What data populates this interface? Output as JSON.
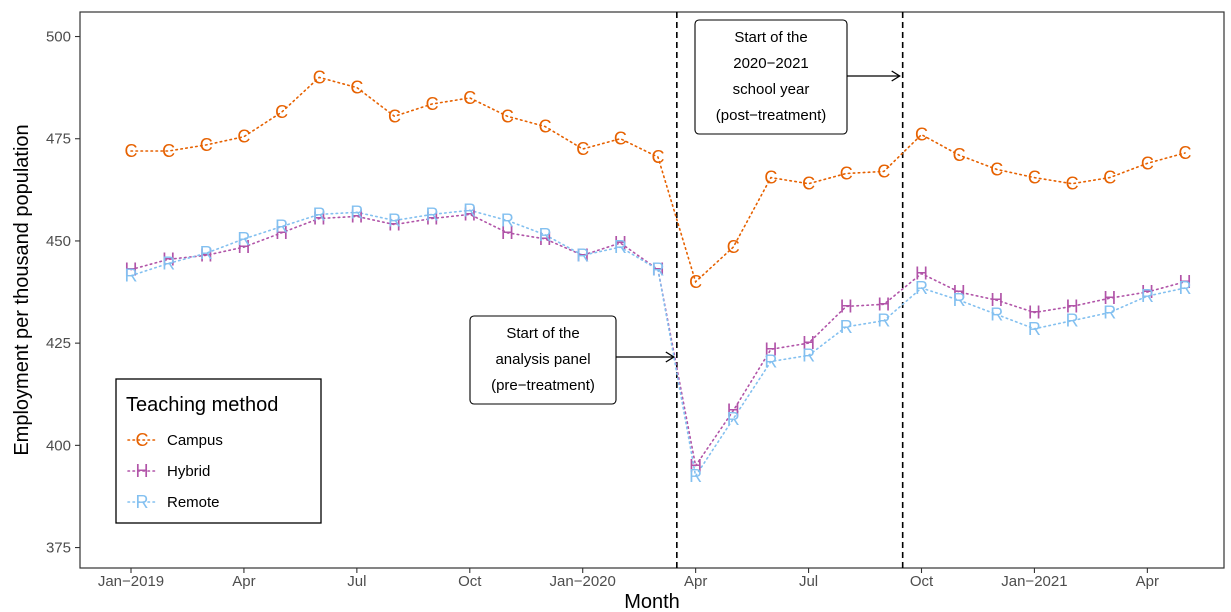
{
  "chart_data": {
    "type": "line",
    "xlabel": "Month",
    "ylabel": "Employment per thousand population",
    "x": [
      "2019-01",
      "2019-02",
      "2019-03",
      "2019-04",
      "2019-05",
      "2019-06",
      "2019-07",
      "2019-08",
      "2019-09",
      "2019-10",
      "2019-11",
      "2019-12",
      "2020-01",
      "2020-02",
      "2020-03",
      "2020-04",
      "2020-05",
      "2020-06",
      "2020-07",
      "2020-08",
      "2020-09",
      "2020-10",
      "2020-11",
      "2020-12",
      "2021-01",
      "2021-02",
      "2021-03",
      "2021-04",
      "2021-05"
    ],
    "x_ticks": [
      {
        "x": "2019-01",
        "label": "Jan−2019"
      },
      {
        "x": "2019-04",
        "label": "Apr"
      },
      {
        "x": "2019-07",
        "label": "Jul"
      },
      {
        "x": "2019-10",
        "label": "Oct"
      },
      {
        "x": "2020-01",
        "label": "Jan−2020"
      },
      {
        "x": "2020-04",
        "label": "Apr"
      },
      {
        "x": "2020-07",
        "label": "Jul"
      },
      {
        "x": "2020-10",
        "label": "Oct"
      },
      {
        "x": "2021-01",
        "label": "Jan−2021"
      },
      {
        "x": "2021-04",
        "label": "Apr"
      }
    ],
    "y_ticks": [
      375,
      400,
      425,
      450,
      475,
      500
    ],
    "ylim": [
      370,
      506
    ],
    "grid": false,
    "legend": {
      "title": "Teaching method",
      "position": "bottom-left"
    },
    "series": [
      {
        "name": "Campus",
        "marker": "C",
        "color": "#E66100",
        "values": [
          472,
          472,
          473.5,
          475.5,
          481.5,
          490,
          487.5,
          480.5,
          483.5,
          485,
          480.5,
          478,
          472.5,
          475,
          470.5,
          440,
          448.5,
          465.5,
          464,
          466.5,
          467,
          476,
          471,
          467.5,
          465.5,
          464,
          465.5,
          469,
          471.5
        ]
      },
      {
        "name": "Hybrid",
        "marker": "H",
        "color": "#B154A8",
        "values": [
          443,
          445.5,
          446.5,
          448.5,
          452,
          455.5,
          456,
          454,
          455.5,
          456.5,
          452,
          450.5,
          446.5,
          449.5,
          443,
          395,
          408.5,
          423.5,
          425,
          434,
          434.5,
          442,
          437.5,
          435.5,
          432.5,
          434,
          436,
          437.5,
          440
        ]
      },
      {
        "name": "Remote",
        "marker": "R",
        "color": "#83C0F0",
        "values": [
          441.5,
          444.5,
          447,
          450.5,
          453.5,
          456.5,
          457,
          455,
          456.5,
          457.5,
          455,
          451.5,
          446.5,
          448.5,
          443,
          392.5,
          406.5,
          420.5,
          422,
          429,
          430.5,
          438.5,
          435.5,
          432,
          428.5,
          430.5,
          432.5,
          436.5,
          438.5
        ]
      }
    ],
    "vlines": [
      {
        "x": "2020-03",
        "style": "dashed"
      },
      {
        "x": "2020-09",
        "style": "dashed"
      }
    ],
    "annotations": [
      {
        "lines": [
          "Start of the",
          "analysis panel",
          "(pre−treatment)"
        ],
        "points_to": "2020-03"
      },
      {
        "lines": [
          "Start of the",
          "2020−2021",
          "school year",
          "(post−treatment)"
        ],
        "points_to": "2020-09"
      }
    ]
  }
}
